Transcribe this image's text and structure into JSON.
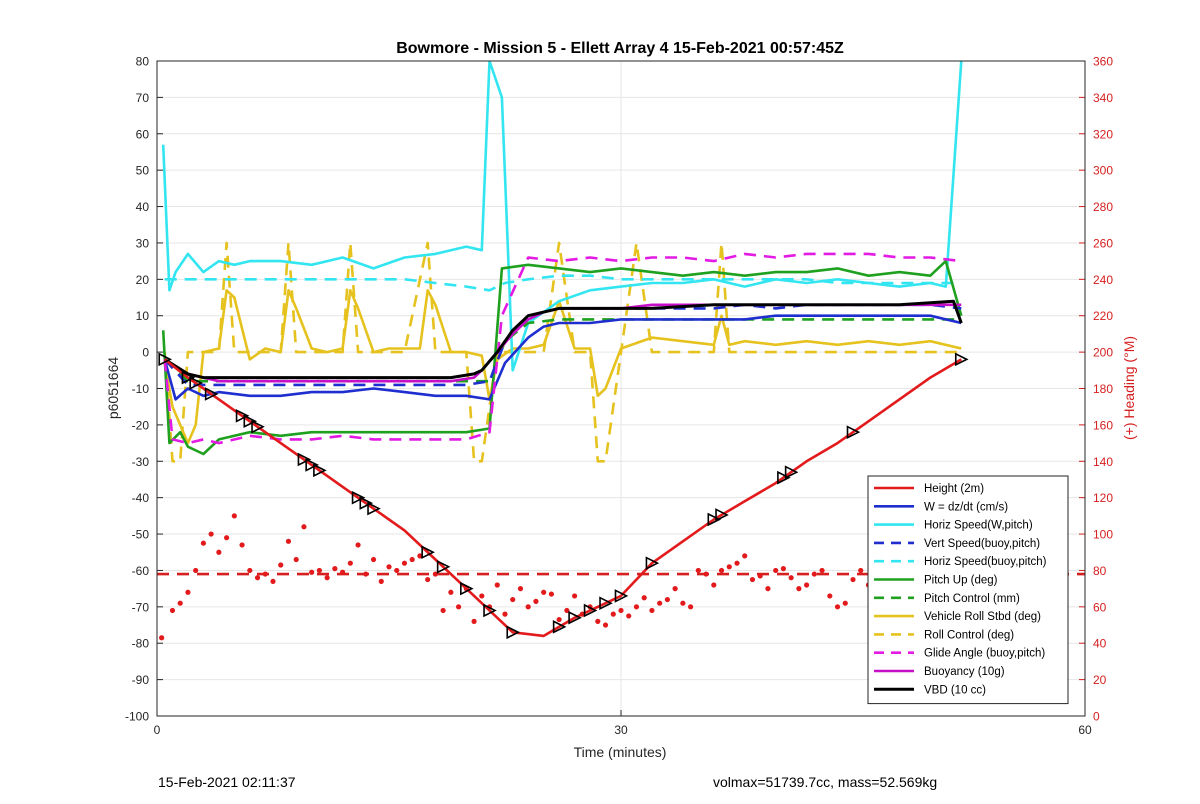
{
  "chart_data": {
    "type": "line",
    "title": "Bowmore - Mission 5 - Ellett Array 4 15-Feb-2021 00:57:45Z",
    "xlabel": "Time (minutes)",
    "ylabel": "p6051664",
    "ylabel_right": "(+) Heading (°M)",
    "xlim": [
      0,
      60
    ],
    "ylim": [
      -100,
      80
    ],
    "ylim_right": [
      0,
      360
    ],
    "xticks": [
      "0",
      "30",
      "60"
    ],
    "yticks": [
      "80",
      "70",
      "60",
      "50",
      "40",
      "30",
      "20",
      "10",
      "0",
      "-10",
      "-20",
      "-30",
      "-40",
      "-50",
      "-60",
      "-70",
      "-80",
      "-90",
      "-100"
    ],
    "yticks_right": [
      "360",
      "340",
      "320",
      "300",
      "280",
      "260",
      "240",
      "220",
      "200",
      "180",
      "160",
      "140",
      "120",
      "100",
      "80",
      "60",
      "40",
      "20",
      "0"
    ],
    "grid": true,
    "legend_position": "bottom-right",
    "footer_left": "15-Feb-2021 02:11:37",
    "footer_right": "volmax=51739.7cc, mass=52.569kg",
    "series": [
      {
        "name": "Height (2m)",
        "color": "#e31a1c",
        "style": "solid",
        "width": 2.6,
        "x": [
          0.5,
          2,
          4,
          6,
          8,
          10,
          12,
          14,
          16,
          18,
          20,
          22,
          23,
          25,
          27,
          30,
          32,
          34,
          36,
          38,
          40,
          42,
          44,
          46,
          48,
          50,
          52
        ],
        "y": [
          -2,
          -7,
          -13,
          -19,
          -25,
          -31,
          -37,
          -43,
          -49,
          -57,
          -65,
          -73,
          -77,
          -78,
          -73,
          -67,
          -58,
          -52,
          -46,
          -41,
          -36,
          -30,
          -25,
          -19,
          -13,
          -7,
          -2
        ]
      },
      {
        "name": "W = dz/dt (cm/s)",
        "color": "#1f2fcf",
        "style": "solid",
        "width": 2.6,
        "x": [
          0.5,
          1.2,
          2,
          3,
          4,
          6,
          8,
          10,
          12,
          14,
          16,
          18,
          20,
          21.5,
          22.5,
          24,
          25,
          26,
          28,
          30,
          32,
          34,
          36,
          38,
          40,
          42,
          44,
          46,
          48,
          50,
          52
        ],
        "y": [
          -2,
          -13,
          -10,
          -12,
          -11,
          -12,
          -12,
          -11,
          -11,
          -10,
          -11,
          -12,
          -12,
          -13,
          -3,
          4,
          7,
          8,
          8,
          9,
          9,
          9,
          9,
          9,
          10,
          10,
          10,
          10,
          10,
          10,
          8
        ]
      },
      {
        "name": "Horiz Speed(W,pitch)",
        "color": "#33e5f0",
        "style": "solid",
        "width": 2.6,
        "x": [
          0.4,
          0.8,
          1.2,
          2,
          3,
          4,
          5,
          6,
          8,
          10,
          12,
          14,
          16,
          18,
          20,
          21,
          21.5,
          22.3,
          23,
          24,
          26,
          28,
          30,
          32,
          34,
          36,
          38,
          40,
          42,
          44,
          46,
          48,
          50,
          51,
          52
        ],
        "y": [
          57,
          17,
          22,
          27,
          22,
          25,
          24,
          25,
          25,
          24,
          26,
          23,
          26,
          27,
          29,
          28,
          80,
          70,
          -5,
          8,
          14,
          17,
          18,
          19,
          19,
          20,
          18,
          20,
          19,
          20,
          19,
          18,
          19,
          18,
          80
        ]
      },
      {
        "name": "Vert Speed(buoy,pitch)",
        "color": "#1f2fcf",
        "style": "dashed",
        "width": 2.6,
        "x": [
          0.5,
          2,
          4,
          6,
          8,
          10,
          12,
          14,
          16,
          18,
          20,
          21.5,
          22.5,
          24,
          26,
          28,
          30,
          32,
          34,
          36,
          38,
          40,
          42,
          44,
          46,
          48,
          50,
          52
        ],
        "y": [
          -2,
          -9,
          -9,
          -9,
          -9,
          -9,
          -9,
          -9,
          -9,
          -9,
          -9,
          -8,
          3,
          10,
          12,
          12,
          12,
          12,
          12,
          12,
          13,
          12,
          13,
          13,
          13,
          13,
          13,
          12
        ]
      },
      {
        "name": "Horiz Speed(buoy,pitch)",
        "color": "#33e5f0",
        "style": "dashed",
        "width": 2.6,
        "x": [
          0.5,
          2,
          4,
          6,
          8,
          10,
          12,
          14,
          16,
          18,
          20,
          21.5,
          22.5,
          24,
          26,
          28,
          30,
          32,
          34,
          36,
          38,
          40,
          42,
          44,
          46,
          48,
          50,
          52
        ],
        "y": [
          20,
          20,
          20,
          20,
          20,
          20,
          20,
          20,
          20,
          19,
          18,
          17,
          19,
          20,
          21,
          21,
          20,
          20,
          20,
          20,
          20,
          20,
          20,
          19,
          19,
          19,
          19,
          19
        ]
      },
      {
        "name": "Pitch Up (deg)",
        "color": "#1fa01f",
        "style": "solid",
        "width": 2.6,
        "x": [
          0.4,
          0.8,
          1.5,
          2,
          3,
          4,
          6,
          8,
          10,
          12,
          14,
          16,
          18,
          20,
          21.5,
          22.3,
          24,
          26,
          28,
          30,
          32,
          34,
          36,
          38,
          40,
          42,
          44,
          46,
          48,
          50,
          51,
          52
        ],
        "y": [
          6,
          -25,
          -22,
          -26,
          -28,
          -24,
          -22,
          -23,
          -22,
          -22,
          -22,
          -22,
          -22,
          -22,
          -21,
          23,
          24,
          23,
          22,
          23,
          22,
          21,
          22,
          21,
          22,
          22,
          23,
          21,
          22,
          21,
          25,
          10
        ]
      },
      {
        "name": "Pitch Control (mm)",
        "color": "#1fa01f",
        "style": "dashed",
        "width": 2.6,
        "x": [
          0.5,
          2,
          4,
          6,
          8,
          10,
          12,
          14,
          16,
          18,
          20,
          21.5,
          22.5,
          24,
          26,
          28,
          30,
          32,
          34,
          36,
          38,
          40,
          42,
          44,
          46,
          48,
          50,
          52
        ],
        "y": [
          -2,
          -8,
          -8,
          -8,
          -8,
          -8,
          -8,
          -8,
          -8,
          -8,
          -8,
          -8,
          3,
          8,
          9,
          9,
          9,
          9,
          9,
          9,
          9,
          9,
          9,
          9,
          9,
          9,
          9,
          9
        ]
      },
      {
        "name": "Vehicle Roll Stbd (deg)",
        "color": "#e6c21e",
        "style": "solid",
        "width": 2.6,
        "x": [
          0.5,
          1,
          2,
          2.5,
          3,
          4,
          4.5,
          5,
          6,
          7,
          8,
          8.5,
          9,
          10,
          11,
          12,
          12.5,
          13,
          14,
          15,
          16,
          17,
          17.5,
          18,
          19,
          20,
          21,
          21.5,
          22,
          23,
          24,
          25,
          26,
          27,
          28,
          28.5,
          29,
          30,
          32,
          34,
          36,
          36.5,
          37,
          38,
          40,
          42,
          44,
          46,
          48,
          50,
          52
        ],
        "y": [
          -3,
          -15,
          -25,
          -20,
          0,
          1,
          17,
          15,
          -2,
          1,
          0,
          17,
          12,
          1,
          0,
          1,
          17,
          12,
          0,
          1,
          1,
          1,
          17,
          13,
          0,
          0,
          -1,
          -13,
          -2,
          1,
          1,
          2,
          14,
          1,
          1,
          -12,
          -10,
          1,
          4,
          3,
          2,
          10,
          2,
          3,
          2,
          3,
          2,
          3,
          2,
          3,
          1
        ]
      },
      {
        "name": "Roll Control (deg)",
        "color": "#e6c21e",
        "style": "dashed",
        "width": 2.6,
        "x": [
          0.5,
          1,
          1.5,
          2,
          3,
          4,
          4.5,
          5,
          6,
          8,
          8.5,
          9,
          10,
          12,
          12.5,
          13,
          14,
          16,
          17.5,
          18,
          19,
          20,
          20.5,
          21,
          22,
          24,
          25,
          26,
          27,
          28,
          28.5,
          29,
          30,
          31,
          32,
          34,
          36,
          36.5,
          37,
          38,
          40,
          42,
          44,
          46,
          48,
          50,
          52
        ],
        "y": [
          0,
          -30,
          -30,
          0,
          0,
          0,
          30,
          0,
          0,
          0,
          30,
          0,
          0,
          0,
          30,
          0,
          0,
          0,
          30,
          0,
          0,
          0,
          -30,
          -30,
          0,
          0,
          0,
          30,
          0,
          0,
          -30,
          -30,
          0,
          30,
          0,
          0,
          0,
          30,
          0,
          0,
          0,
          0,
          0,
          0,
          0,
          0,
          0
        ]
      },
      {
        "name": "Glide Angle (buoy,pitch)",
        "color": "#e31ae3",
        "style": "dashed",
        "width": 2.6,
        "x": [
          0.5,
          1,
          2,
          3,
          4,
          6,
          8,
          10,
          12,
          14,
          16,
          18,
          20,
          21.5,
          22.3,
          24,
          26,
          28,
          30,
          32,
          34,
          36,
          38,
          40,
          42,
          44,
          46,
          48,
          50,
          52
        ],
        "y": [
          -2,
          -24,
          -25,
          -24,
          -25,
          -23,
          -24,
          -24,
          -23,
          -24,
          -24,
          -24,
          -24,
          -22,
          10,
          26,
          25,
          26,
          25,
          26,
          26,
          25,
          27,
          26,
          27,
          27,
          27,
          26,
          26,
          25
        ]
      },
      {
        "name": "Buoyancy (10g)",
        "color": "#c80fc8",
        "style": "solid",
        "width": 2.6,
        "x": [
          0.5,
          2,
          3,
          4,
          8,
          12,
          16,
          19,
          20.5,
          21,
          22,
          23,
          24,
          25,
          26,
          28,
          30,
          32,
          36,
          40,
          44,
          48,
          52
        ],
        "y": [
          -2,
          -6,
          -7,
          -8,
          -8,
          -8,
          -8,
          -8,
          -7,
          -5,
          0,
          5,
          9,
          11,
          12,
          12,
          12,
          13,
          13,
          13,
          13,
          13,
          13
        ]
      },
      {
        "name": "VBD (10 cc)",
        "color": "#000000",
        "style": "solid",
        "width": 3,
        "x": [
          0.5,
          2,
          3,
          4,
          8,
          12,
          16,
          19,
          20.5,
          21,
          22,
          23,
          24,
          25,
          26,
          28,
          30,
          32,
          36,
          40,
          44,
          48,
          51.5,
          52
        ],
        "y": [
          -2,
          -6,
          -7,
          -7,
          -7,
          -7,
          -7,
          -7,
          -6,
          -5,
          0,
          6,
          10,
          11,
          12,
          12,
          12,
          12,
          13,
          13,
          13,
          13,
          14,
          8
        ]
      }
    ],
    "heading_target": 78,
    "heading_points": {
      "x": [
        0.3,
        1,
        1.5,
        2,
        2.5,
        3,
        3.5,
        4,
        4.5,
        5,
        5.5,
        6,
        6.5,
        7,
        7.5,
        8,
        8.5,
        9,
        9.5,
        10,
        10.5,
        11,
        11.5,
        12,
        12.5,
        13,
        13.5,
        14,
        14.5,
        15,
        15.5,
        16,
        16.5,
        17,
        17.5,
        18,
        18.5,
        19,
        19.5,
        20,
        20.5,
        21,
        21.5,
        22,
        22.5,
        23,
        23.5,
        24,
        24.5,
        25,
        25.5,
        26,
        26.5,
        27,
        27.5,
        28,
        28.5,
        29,
        29.5,
        30,
        30.5,
        31,
        31.5,
        32,
        32.5,
        33,
        33.5,
        34,
        34.5,
        35,
        35.5,
        36,
        36.5,
        37,
        37.5,
        38,
        38.5,
        39,
        39.5,
        40,
        40.5,
        41,
        41.5,
        42,
        42.5,
        43,
        43.5,
        44,
        44.5,
        45,
        45.5,
        46,
        46.5,
        47,
        47.5,
        48,
        48.5,
        49,
        49.5,
        50,
        50.5,
        51
      ],
      "y": [
        43,
        58,
        62,
        68,
        80,
        95,
        100,
        90,
        98,
        110,
        94,
        80,
        76,
        78,
        74,
        83,
        96,
        86,
        104,
        79,
        80,
        76,
        81,
        79,
        84,
        94,
        78,
        86,
        74,
        82,
        80,
        84,
        86,
        88,
        75,
        78,
        58,
        68,
        60,
        70,
        52,
        66,
        60,
        72,
        56,
        64,
        70,
        60,
        63,
        68,
        67,
        53,
        58,
        66,
        56,
        60,
        52,
        50,
        56,
        58,
        55,
        60,
        65,
        58,
        62,
        64,
        70,
        62,
        60,
        80,
        78,
        72,
        80,
        82,
        84,
        88,
        75,
        77,
        70,
        80,
        81,
        76,
        70,
        72,
        78,
        80,
        66,
        60,
        62,
        75,
        80,
        72,
        70,
        66,
        64,
        68,
        62,
        74,
        72,
        78,
        70,
        60
      ]
    }
  }
}
